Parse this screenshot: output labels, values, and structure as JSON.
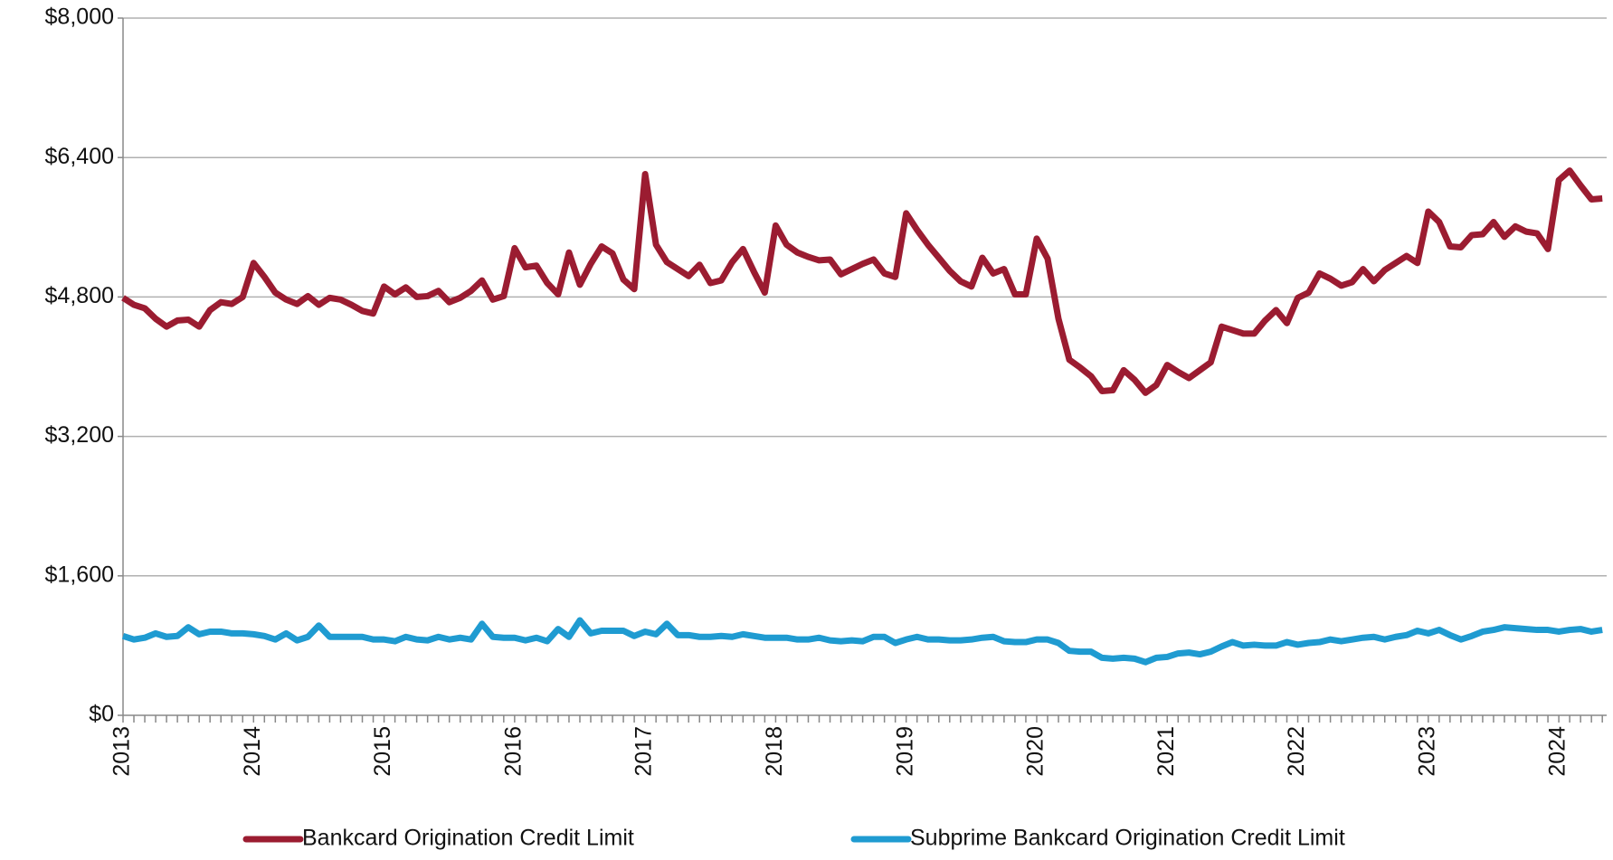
{
  "chart_data": {
    "type": "line",
    "categories": [
      "2013",
      null,
      null,
      null,
      null,
      null,
      null,
      null,
      null,
      null,
      null,
      null,
      "2014",
      null,
      null,
      null,
      null,
      null,
      null,
      null,
      null,
      null,
      null,
      null,
      "2015",
      null,
      null,
      null,
      null,
      null,
      null,
      null,
      null,
      null,
      null,
      null,
      "2016",
      null,
      null,
      null,
      null,
      null,
      null,
      null,
      null,
      null,
      null,
      null,
      "2017",
      null,
      null,
      null,
      null,
      null,
      null,
      null,
      null,
      null,
      null,
      null,
      "2018",
      null,
      null,
      null,
      null,
      null,
      null,
      null,
      null,
      null,
      null,
      null,
      "2019",
      null,
      null,
      null,
      null,
      null,
      null,
      null,
      null,
      null,
      null,
      null,
      "2020",
      null,
      null,
      null,
      null,
      null,
      null,
      null,
      null,
      null,
      null,
      null,
      "2021",
      null,
      null,
      null,
      null,
      null,
      null,
      null,
      null,
      null,
      null,
      null,
      "2022",
      null,
      null,
      null,
      null,
      null,
      null,
      null,
      null,
      null,
      null,
      null,
      "2023",
      null,
      null,
      null,
      null,
      null,
      null,
      null,
      null,
      null,
      null,
      null,
      "2024",
      null,
      null,
      null,
      null
    ],
    "series": [
      {
        "name": "Bankcard Origination Credit Limit",
        "color": "#9b1c31",
        "values": [
          4790,
          4710,
          4670,
          4550,
          4460,
          4530,
          4540,
          4460,
          4650,
          4740,
          4720,
          4800,
          5190,
          5030,
          4850,
          4770,
          4720,
          4810,
          4710,
          4790,
          4770,
          4710,
          4640,
          4610,
          4920,
          4830,
          4910,
          4800,
          4810,
          4870,
          4740,
          4790,
          4870,
          4990,
          4770,
          4810,
          5360,
          5140,
          5160,
          4960,
          4830,
          5310,
          4940,
          5180,
          5380,
          5300,
          5000,
          4890,
          6210,
          5400,
          5200,
          5120,
          5040,
          5170,
          4960,
          4990,
          5200,
          5350,
          5090,
          4850,
          5620,
          5400,
          5310,
          5260,
          5220,
          5230,
          5060,
          5120,
          5180,
          5230,
          5070,
          5030,
          5760,
          5570,
          5400,
          5250,
          5100,
          4980,
          4920,
          5250,
          5070,
          5120,
          4830,
          4830,
          5470,
          5240,
          4550,
          4080,
          3990,
          3890,
          3720,
          3730,
          3960,
          3850,
          3700,
          3790,
          4020,
          3940,
          3870,
          3960,
          4050,
          4460,
          4420,
          4380,
          4380,
          4530,
          4650,
          4500,
          4790,
          4850,
          5070,
          5010,
          4930,
          4970,
          5120,
          4980,
          5110,
          5190,
          5270,
          5190,
          5780,
          5660,
          5380,
          5370,
          5510,
          5520,
          5660,
          5490,
          5610,
          5550,
          5530,
          5350,
          6140,
          6250,
          6080,
          5920,
          5930
        ]
      },
      {
        "name": "Subprime Bankcard Origination Credit Limit",
        "color": "#1f9bd1",
        "values": [
          910,
          870,
          890,
          940,
          900,
          910,
          1010,
          930,
          960,
          960,
          940,
          940,
          930,
          910,
          870,
          940,
          860,
          900,
          1030,
          900,
          900,
          900,
          900,
          870,
          870,
          850,
          900,
          870,
          860,
          900,
          870,
          890,
          870,
          1050,
          900,
          890,
          890,
          860,
          890,
          850,
          990,
          900,
          1090,
          940,
          970,
          970,
          970,
          910,
          960,
          930,
          1050,
          920,
          920,
          900,
          900,
          910,
          900,
          930,
          910,
          890,
          890,
          890,
          870,
          870,
          890,
          860,
          850,
          860,
          850,
          900,
          900,
          830,
          870,
          900,
          870,
          870,
          860,
          860,
          870,
          890,
          900,
          850,
          840,
          840,
          870,
          870,
          830,
          740,
          730,
          730,
          660,
          650,
          660,
          650,
          610,
          660,
          670,
          710,
          720,
          700,
          730,
          790,
          840,
          800,
          810,
          800,
          800,
          840,
          810,
          830,
          840,
          870,
          850,
          870,
          890,
          900,
          870,
          900,
          920,
          970,
          940,
          980,
          920,
          870,
          910,
          960,
          980,
          1010,
          1000,
          990,
          980,
          980,
          960,
          980,
          990,
          960,
          980
        ]
      }
    ],
    "ylim": [
      0,
      8000
    ],
    "yticks": [
      {
        "value": 0,
        "label": "$0"
      },
      {
        "value": 1600,
        "label": "$1,600"
      },
      {
        "value": 3200,
        "label": "$3,200"
      },
      {
        "value": 4800,
        "label": "$4,800"
      },
      {
        "value": 6400,
        "label": "$6,400"
      },
      {
        "value": 8000,
        "label": "$8,000"
      }
    ],
    "grid": true,
    "legend": "bottom"
  }
}
